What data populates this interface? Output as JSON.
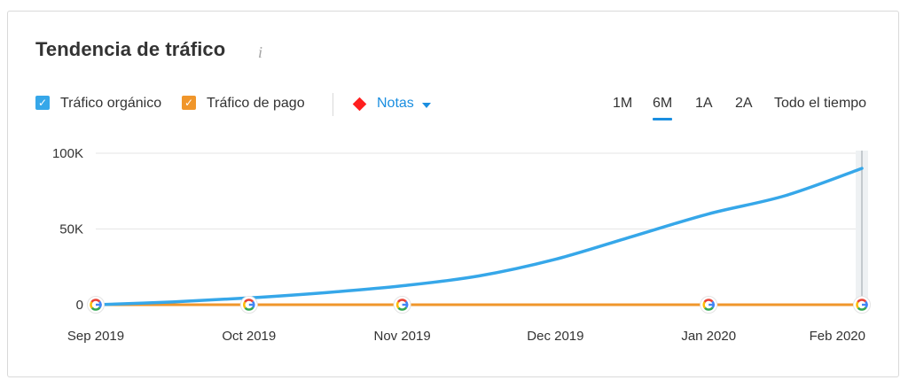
{
  "widget": {
    "title": "Tendencia de tráfico",
    "info_icon": "info-icon"
  },
  "controls": {
    "organic_label": "Tráfico orgánico",
    "paid_label": "Tráfico de pago",
    "notes_label": "Notas",
    "ranges": [
      "1M",
      "6M",
      "1A",
      "2A",
      "Todo el tiempo"
    ],
    "active_range": "6M"
  },
  "colors": {
    "organic": "#36a7e9",
    "paid": "#f0962b",
    "notes": "#ff1f1f",
    "accent": "#1a8ee0"
  },
  "chart_data": {
    "type": "line",
    "x": [
      "Sep 2019",
      "Oct 2019",
      "Nov 2019",
      "Dec 2019",
      "Jan 2020",
      "Feb 2020"
    ],
    "yticks": [
      "100K",
      "50K",
      "0"
    ],
    "ylim": [
      0,
      100000
    ],
    "grid": true,
    "series": [
      {
        "name": "Tráfico orgánico",
        "points": [
          [
            0,
            0
          ],
          [
            0.5,
            1800
          ],
          [
            1,
            4500
          ],
          [
            1.5,
            8000
          ],
          [
            2,
            12500
          ],
          [
            2.5,
            19000
          ],
          [
            3,
            30000
          ],
          [
            3.5,
            45000
          ],
          [
            4,
            60000
          ],
          [
            4.5,
            72000
          ],
          [
            5,
            90000
          ]
        ]
      },
      {
        "name": "Tráfico de pago",
        "points": [
          [
            0,
            0
          ],
          [
            5,
            0
          ]
        ]
      }
    ],
    "annotation_markers": [
      "Sep 2019",
      "Oct 2019",
      "Nov 2019",
      "Jan 2020",
      "Feb 2020"
    ],
    "marker_icon": "google-update-icon"
  }
}
